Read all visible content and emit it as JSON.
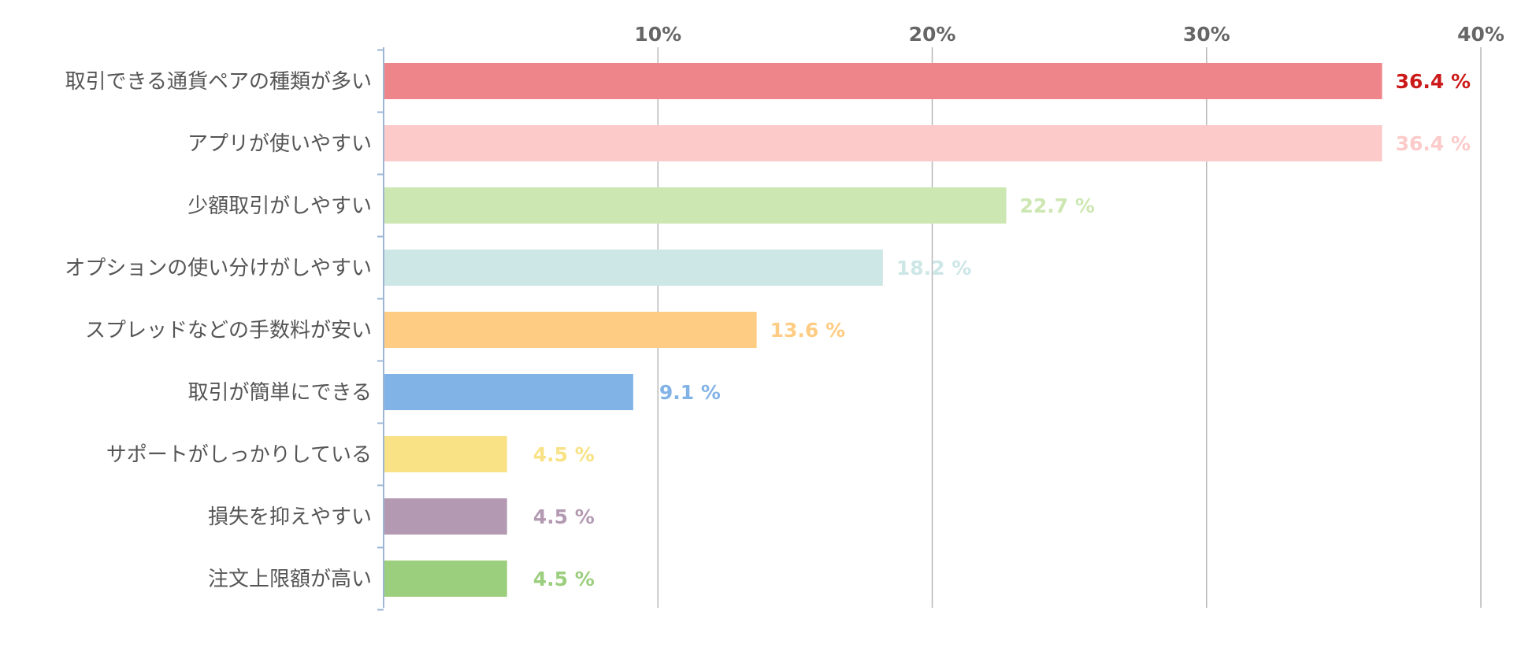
{
  "chart_data": {
    "type": "bar",
    "orientation": "horizontal",
    "title": "",
    "xlabel": "",
    "ylabel": "",
    "xlim": [
      0,
      40
    ],
    "ticks": [
      10,
      20,
      30,
      40
    ],
    "tick_labels": [
      "10%",
      "20%",
      "30%",
      "40%"
    ],
    "grid": true,
    "categories": [
      "取引できる通貨ペアの種類が多い",
      "アプリが使いやすい",
      "少額取引がしやすい",
      "オプションの使い分けがしやすい",
      "スプレッドなどの手数料が安い",
      "取引が簡単にできる",
      "サポートがしっかりしている",
      "損失を抑えやすい",
      "注文上限額が高い"
    ],
    "values": [
      36.4,
      36.4,
      22.7,
      18.2,
      13.6,
      9.1,
      4.5,
      4.5,
      4.5
    ],
    "value_labels": [
      "36.4 %",
      "36.4 %",
      "22.7 %",
      "18.2 %",
      "13.6 %",
      "9.1 %",
      "4.5 %",
      "4.5 %",
      "4.5 %"
    ],
    "bar_colors": [
      "#ee858a",
      "#fdcaca",
      "#cde7b2",
      "#cde6e6",
      "#fecc82",
      "#82b3e7",
      "#f8e285",
      "#b39ab2",
      "#9bce7d"
    ],
    "label_colors": [
      "#cc1a1a",
      "#fdcaca",
      "#cde7b2",
      "#cde6e6",
      "#fecc82",
      "#82b3e7",
      "#f8e285",
      "#b39ab2",
      "#9bce7d"
    ]
  }
}
